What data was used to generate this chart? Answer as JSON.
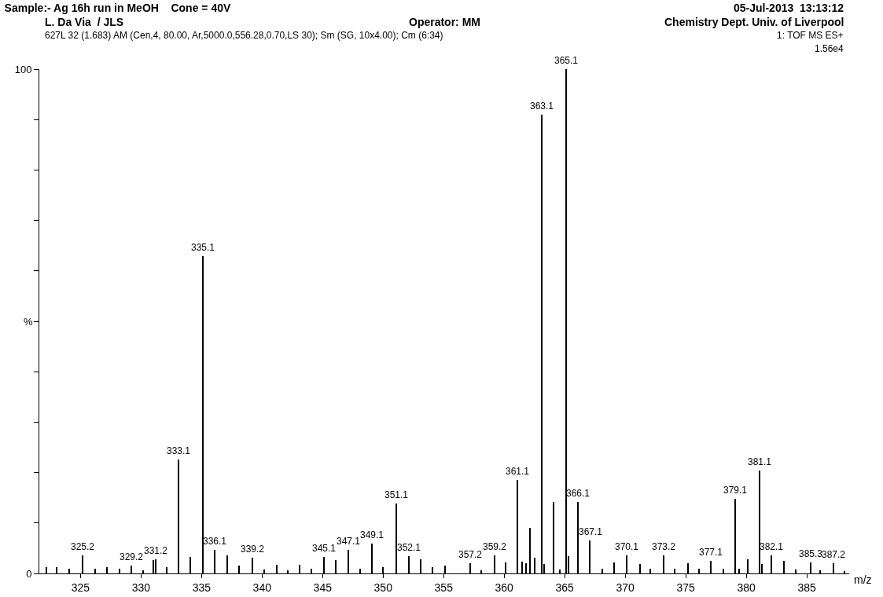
{
  "chart_data": {
    "type": "bar",
    "title": "Sample:- Ag 16h run in MeOH    Cone = 40V",
    "xlabel": "m/z",
    "ylabel": "%",
    "annotations": [
      "L. Da Via  / JLS",
      "Operator: MM",
      "05-Jul-2013  13:13:12",
      "Chemistry Dept. Univ. of Liverpool",
      "627L 32 (1.683) AM (Cen,4, 80.00, Ar,5000.0,556.28,0.70,LS 30); Sm (SG, 10x4.00); Cm (6:34)",
      "1: TOF MS ES+",
      "1.56e4",
      {
        "text": "325.2",
        "x": 325.2,
        "y": 3.6
      },
      {
        "text": "329.2",
        "x": 329.2,
        "y": 1.5
      },
      {
        "text": "331.2",
        "x": 331.2,
        "y": 2.8
      },
      {
        "text": "333.1",
        "x": 333.1,
        "y": 22.6
      },
      {
        "text": "335.1",
        "x": 335.1,
        "y": 63
      },
      {
        "text": "336.1",
        "x": 336.1,
        "y": 4.6
      },
      {
        "text": "339.2",
        "x": 339.2,
        "y": 3.1
      },
      {
        "text": "345.1",
        "x": 345.1,
        "y": 3.2
      },
      {
        "text": "347.1",
        "x": 347.1,
        "y": 4.6
      },
      {
        "text": "349.1",
        "x": 349.1,
        "y": 5.9
      },
      {
        "text": "351.1",
        "x": 351.1,
        "y": 13.8
      },
      {
        "text": "352.1",
        "x": 352.1,
        "y": 3.4
      },
      {
        "text": "357.2",
        "x": 357.2,
        "y": 2
      },
      {
        "text": "359.2",
        "x": 359.2,
        "y": 3.6
      },
      {
        "text": "361.1",
        "x": 361.1,
        "y": 18.5
      },
      {
        "text": "363.1",
        "x": 363.1,
        "y": 91
      },
      {
        "text": "365.1",
        "x": 365.1,
        "y": 100
      },
      {
        "text": "366.1",
        "x": 366.1,
        "y": 14.1
      },
      {
        "text": "367.1",
        "x": 367.1,
        "y": 6.6
      },
      {
        "text": "370.1",
        "x": 370.1,
        "y": 3.6
      },
      {
        "text": "373.2",
        "x": 373.2,
        "y": 3.6
      },
      {
        "text": "377.1",
        "x": 377.1,
        "y": 2.5
      },
      {
        "text": "379.1",
        "x": 379.1,
        "y": 14.8
      },
      {
        "text": "381.1",
        "x": 381.1,
        "y": 20.4
      },
      {
        "text": "382.1",
        "x": 382.1,
        "y": 3.6
      },
      {
        "text": "385.3",
        "x": 385.3,
        "y": 2.2
      },
      {
        "text": "387.2",
        "x": 387.2,
        "y": 2
      }
    ],
    "x": [
      322.2,
      323.0,
      324.1,
      325.2,
      326.2,
      327.2,
      328.2,
      329.2,
      330.2,
      331.0,
      331.2,
      332.1,
      333.1,
      334.1,
      335.1,
      336.1,
      337.1,
      338.1,
      339.2,
      340.2,
      341.2,
      342.1,
      343.1,
      344.1,
      345.1,
      346.1,
      347.1,
      348.1,
      349.1,
      350.0,
      351.1,
      352.1,
      353.1,
      354.1,
      355.1,
      357.2,
      358.1,
      359.2,
      360.1,
      361.1,
      361.5,
      361.8,
      362.1,
      362.5,
      363.1,
      363.3,
      364.1,
      364.6,
      365.1,
      365.3,
      366.1,
      367.1,
      368.1,
      369.1,
      370.1,
      371.2,
      372.1,
      373.2,
      374.1,
      375.2,
      376.1,
      377.1,
      378.1,
      379.1,
      379.4,
      380.1,
      381.1,
      381.3,
      382.1,
      383.1,
      384.1,
      385.3,
      386.1,
      387.2,
      388.1
    ],
    "values": [
      1.2,
      1.2,
      0.9,
      3.6,
      1.0,
      1.3,
      0.9,
      1.5,
      0.6,
      2.6,
      2.8,
      1.2,
      22.6,
      3.2,
      63,
      4.6,
      3.6,
      1.6,
      3.1,
      0.8,
      1.7,
      0.6,
      1.7,
      1.0,
      3.2,
      2.7,
      4.6,
      1.0,
      5.9,
      1.2,
      13.8,
      3.4,
      2.8,
      1.3,
      1.6,
      2.0,
      0.7,
      3.6,
      2.2,
      18.5,
      2.3,
      2.1,
      9.1,
      3.1,
      91,
      1.9,
      14.1,
      0.8,
      100,
      3.4,
      14.1,
      6.6,
      1.0,
      2.2,
      3.6,
      1.9,
      1.0,
      3.6,
      0.9,
      2.0,
      1.0,
      2.5,
      1.0,
      14.8,
      1.0,
      2.8,
      20.4,
      1.9,
      3.6,
      2.5,
      0.8,
      2.2,
      0.6,
      2.0,
      0.5
    ],
    "color": "#000000",
    "xlim": [
      321.6,
      388.5
    ],
    "xticks": [
      325,
      330,
      335,
      340,
      345,
      350,
      355,
      360,
      365,
      370,
      375,
      380,
      385
    ],
    "ylim": [
      0,
      100
    ],
    "yticks": [
      0,
      {
        "value": 10,
        "label": null
      },
      {
        "value": 20,
        "label": null
      },
      {
        "value": 30,
        "label": null
      },
      {
        "value": 40,
        "label": null
      },
      {
        "value": 50,
        "label": null
      },
      {
        "value": 60,
        "label": null
      },
      {
        "value": 70,
        "label": null
      },
      {
        "value": 80,
        "label": null
      },
      {
        "value": 90,
        "label": null
      },
      100
    ],
    "grid": false,
    "legend": false
  }
}
